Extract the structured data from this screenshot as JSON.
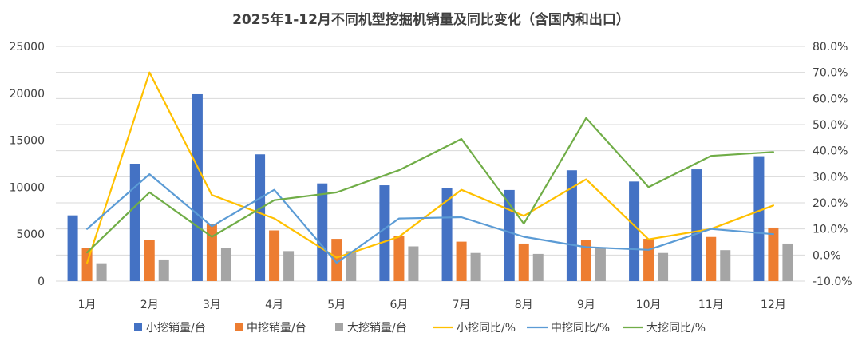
{
  "chart_data": {
    "type": "bar",
    "title": "2025年1-12月不同机型挖掘机销量及同比变化（含国内和出口）",
    "categories": [
      "1月",
      "2月",
      "3月",
      "4月",
      "5月",
      "6月",
      "7月",
      "8月",
      "9月",
      "10月",
      "11月",
      "12月"
    ],
    "y_left": {
      "ylim": [
        0,
        25000
      ],
      "ticks": [
        "0",
        "5000",
        "10000",
        "15000",
        "20000",
        "25000"
      ],
      "tick_values": [
        0,
        5000,
        10000,
        15000,
        20000,
        25000
      ]
    },
    "y_right": {
      "ylim": [
        -10,
        80
      ],
      "ticks": [
        "-10.0%",
        "0.0%",
        "10.0%",
        "20.0%",
        "30.0%",
        "40.0%",
        "50.0%",
        "60.0%",
        "70.0%",
        "80.0%"
      ],
      "tick_values": [
        -10,
        0,
        10,
        20,
        30,
        40,
        50,
        60,
        70,
        80
      ]
    },
    "bar_series": [
      {
        "name": "小挖销量/台",
        "color": "#4472C4",
        "values": [
          7000,
          12500,
          19900,
          13500,
          10400,
          10200,
          9900,
          9700,
          11800,
          10600,
          11900,
          13300
        ]
      },
      {
        "name": "中挖销量/台",
        "color": "#ED7D31",
        "values": [
          3500,
          4400,
          6100,
          5400,
          4500,
          4800,
          4200,
          4000,
          4400,
          4500,
          4700,
          5700
        ]
      },
      {
        "name": "大挖销量/台",
        "color": "#A5A5A5",
        "values": [
          1900,
          2300,
          3500,
          3200,
          3200,
          3700,
          3000,
          2900,
          3500,
          3000,
          3300,
          4000
        ]
      }
    ],
    "line_series": [
      {
        "name": "小挖同比/%",
        "color": "#FFC000",
        "values": [
          -3,
          70,
          23,
          14,
          -1,
          7,
          25,
          15,
          29,
          6,
          10,
          19
        ]
      },
      {
        "name": "中挖同比/%",
        "color": "#5B9BD5",
        "values": [
          10,
          31,
          11,
          25,
          -3,
          14,
          14.5,
          7,
          3,
          2,
          10,
          8
        ]
      },
      {
        "name": "大挖同比/%",
        "color": "#70AD47",
        "values": [
          1,
          24,
          7,
          21,
          24,
          32.5,
          44.5,
          12,
          52.5,
          26,
          38,
          39.5
        ]
      }
    ],
    "grid": true,
    "legend_position": "bottom"
  }
}
